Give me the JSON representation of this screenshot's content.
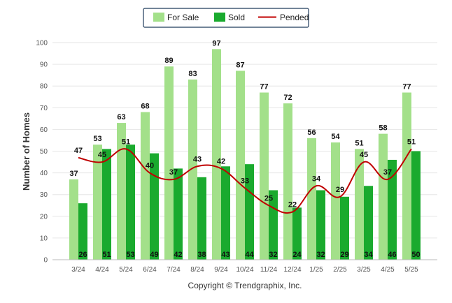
{
  "chart_data": {
    "type": "bar",
    "categories": [
      "3/24",
      "4/24",
      "5/24",
      "6/24",
      "7/24",
      "8/24",
      "9/24",
      "10/24",
      "11/24",
      "12/24",
      "1/25",
      "2/25",
      "3/25",
      "4/25",
      "5/25"
    ],
    "series": [
      {
        "name": "For Sale",
        "type": "bar",
        "color": "#a3e08a",
        "values": [
          37,
          53,
          63,
          68,
          89,
          83,
          97,
          87,
          77,
          72,
          56,
          54,
          51,
          58,
          77
        ]
      },
      {
        "name": "Sold",
        "type": "bar",
        "color": "#1aaa2e",
        "values": [
          26,
          51,
          53,
          49,
          42,
          38,
          43,
          44,
          32,
          24,
          32,
          29,
          34,
          46,
          50
        ]
      },
      {
        "name": "Pended",
        "type": "line",
        "color": "#c00000",
        "values": [
          47,
          45,
          51,
          40,
          37,
          43,
          42,
          33,
          25,
          22,
          34,
          29,
          45,
          37,
          51
        ]
      }
    ],
    "ylabel": "Number of Homes",
    "xlabel": "",
    "ylim": [
      0,
      100
    ],
    "yticks": [
      0,
      10,
      20,
      30,
      40,
      50,
      60,
      70,
      80,
      90,
      100
    ],
    "grid": true,
    "legend_position": "top-center"
  },
  "footer": "Copyright © Trendgraphix, Inc."
}
